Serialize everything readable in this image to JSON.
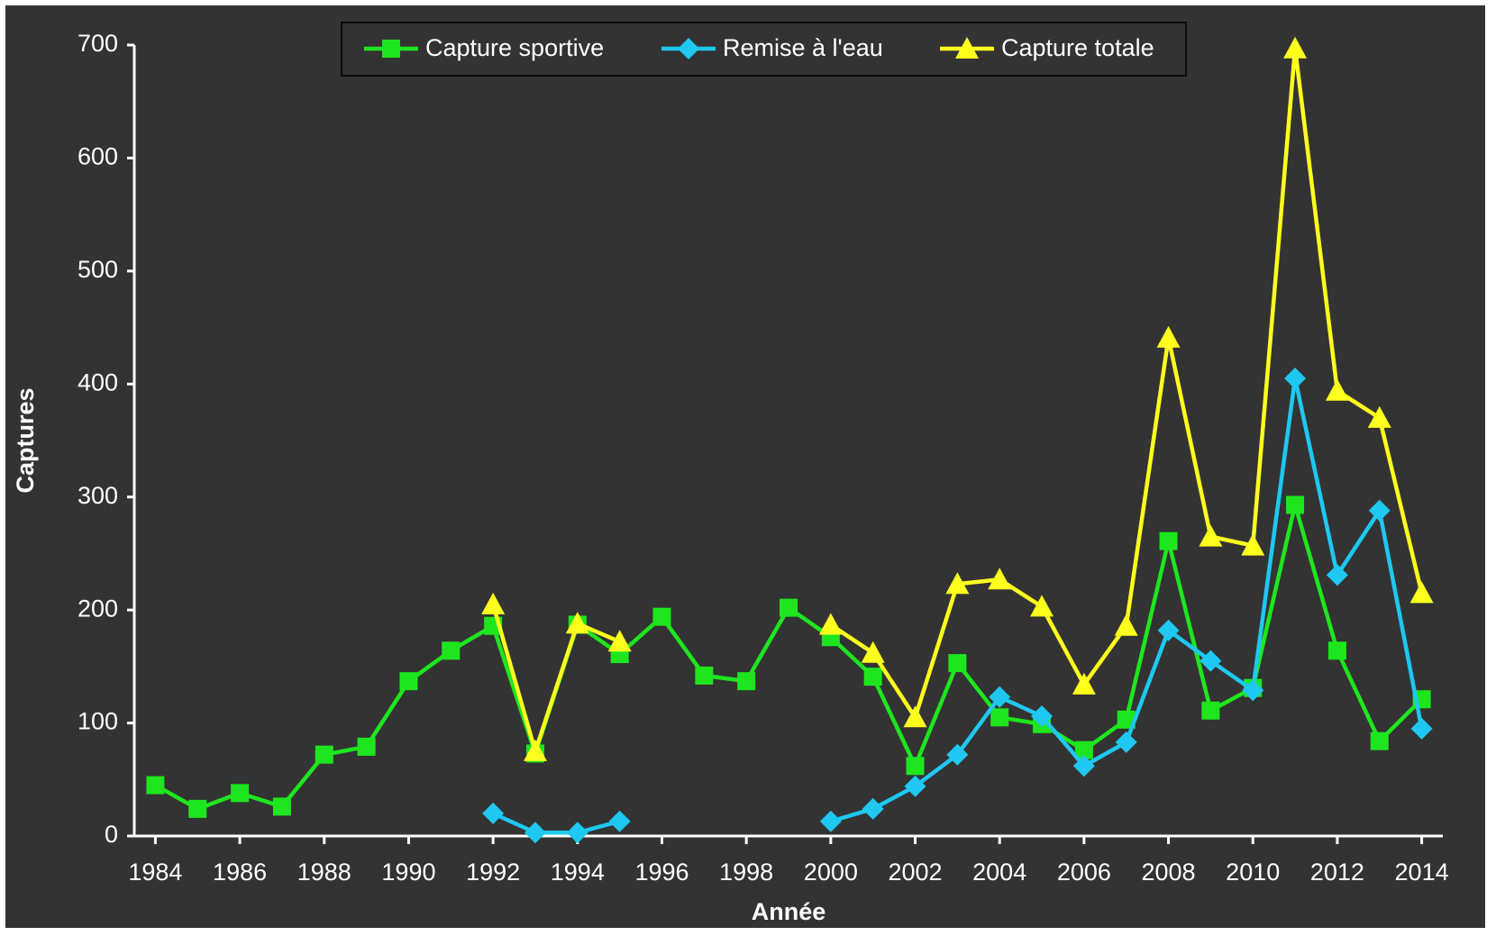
{
  "chart_data": {
    "type": "line",
    "x": [
      1984,
      1985,
      1986,
      1987,
      1988,
      1989,
      1990,
      1991,
      1992,
      1993,
      1994,
      1995,
      1996,
      1997,
      1998,
      1999,
      2000,
      2001,
      2002,
      2003,
      2004,
      2005,
      2006,
      2007,
      2008,
      2009,
      2010,
      2011,
      2012,
      2013,
      2014
    ],
    "xlim": [
      1983.5,
      2014.5
    ],
    "xticks": [
      1984,
      1986,
      1988,
      1990,
      1992,
      1994,
      1996,
      1998,
      2000,
      2002,
      2004,
      2006,
      2008,
      2010,
      2012,
      2014
    ],
    "ylim": [
      0,
      700
    ],
    "yticks": [
      0,
      100,
      200,
      300,
      400,
      500,
      600,
      700
    ],
    "xlabel": "Année",
    "ylabel": "Captures",
    "legend": "top",
    "series": [
      {
        "name": "Capture sportive",
        "color": "#1ee61e",
        "marker": "square",
        "values": [
          45,
          24,
          38,
          26,
          72,
          79,
          137,
          164,
          186,
          73,
          187,
          161,
          194,
          142,
          137,
          202,
          176,
          141,
          62,
          153,
          105,
          99,
          76,
          103,
          261,
          111,
          131,
          293,
          164,
          84,
          121
        ]
      },
      {
        "name": "Remise à l'eau",
        "color": "#1ec8f0",
        "marker": "diamond",
        "values": [
          null,
          null,
          null,
          null,
          null,
          null,
          null,
          null,
          20,
          3,
          3,
          13,
          null,
          null,
          null,
          null,
          13,
          24,
          44,
          72,
          123,
          106,
          62,
          83,
          182,
          155,
          129,
          405,
          231,
          288,
          95
        ]
      },
      {
        "name": "Capture totale",
        "color": "#ffff1e",
        "marker": "triangle",
        "values": [
          null,
          null,
          null,
          null,
          null,
          null,
          null,
          null,
          205,
          75,
          188,
          172,
          null,
          null,
          null,
          null,
          187,
          162,
          105,
          223,
          227,
          203,
          134,
          186,
          441,
          265,
          257,
          697,
          394,
          370,
          215
        ]
      }
    ]
  }
}
